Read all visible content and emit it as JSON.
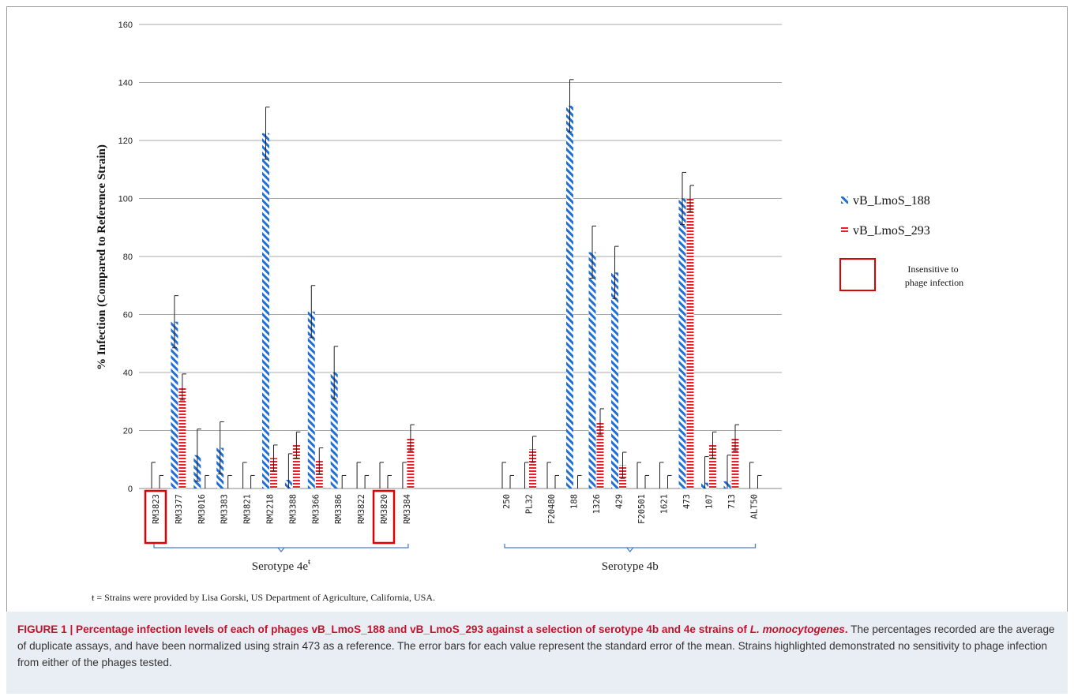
{
  "chart_data": {
    "type": "bar",
    "ylabel": "% Infection (Compared to Reference Strain)",
    "ylim": [
      0,
      160
    ],
    "yticks": [
      0,
      20,
      40,
      60,
      80,
      100,
      120,
      140,
      160
    ],
    "grid": true,
    "legend_position": "right",
    "categories": [
      "RM3823",
      "RM3377",
      "RM3016",
      "RM3383",
      "RM3821",
      "RM2218",
      "RM3388",
      "RM3366",
      "RM3386",
      "RM3822",
      "RM3820",
      "RM3384",
      "250",
      "PL32",
      "F20480",
      "188",
      "1326",
      "429",
      "F20501",
      "1621",
      "473",
      "107",
      "713",
      "ALT50"
    ],
    "groups": [
      {
        "label": "Serotype 4e",
        "superscript": "ŧ",
        "start": 0,
        "end": 11
      },
      {
        "label": "Serotype 4b",
        "start": 12,
        "end": 23
      }
    ],
    "highlighted": [
      "RM3823",
      "RM3820"
    ],
    "series": [
      {
        "name": "vB_LmoS_188",
        "color": "#1f6fd6",
        "pattern": "diagonal",
        "values": [
          0,
          57.5,
          11.5,
          14,
          0,
          122.5,
          3,
          61,
          40,
          0,
          0,
          0,
          0,
          0,
          0,
          132,
          81.5,
          74.5,
          0,
          0,
          100,
          2,
          2.5,
          0
        ],
        "errors": [
          9,
          9,
          9,
          9,
          9,
          9,
          9,
          9,
          9,
          9,
          9,
          9,
          9,
          9,
          9,
          9,
          9,
          9,
          9,
          9,
          9,
          9,
          9,
          9
        ]
      },
      {
        "name": "vB_LmoS_293",
        "color": "#e8202a",
        "pattern": "horizontal",
        "values": [
          0,
          35,
          0,
          0,
          0,
          10.5,
          15,
          9.5,
          0,
          0,
          0,
          17.5,
          0,
          13.5,
          0,
          0,
          23,
          8,
          0,
          0,
          100,
          15,
          17.5,
          0
        ],
        "errors": [
          4.5,
          4.5,
          4.5,
          4.5,
          4.5,
          4.5,
          4.5,
          4.5,
          4.5,
          4.5,
          4.5,
          4.5,
          4.5,
          4.5,
          4.5,
          4.5,
          4.5,
          4.5,
          4.5,
          4.5,
          4.5,
          4.5,
          4.5,
          4.5
        ]
      }
    ],
    "legend_box_label": "Insensitive to phage infection"
  },
  "footnote": "ŧ = Strains were provided by Lisa Gorski, US Department of Agriculture, California, USA.",
  "caption": {
    "title": "FIGURE 1 | Percentage infection levels of each of phages vB_LmoS_188 and vB_LmoS_293 against a selection of serotype 4b and 4e strains of ",
    "title_italic": "L. monocytogenes",
    "title_end": ".",
    "body": " The percentages recorded are the average of duplicate assays, and have been normalized using strain 473 as a reference. The error bars for each value represent the standard error of the mean. Strains highlighted demonstrated no sensitivity to phage infection from either of the phages tested."
  }
}
